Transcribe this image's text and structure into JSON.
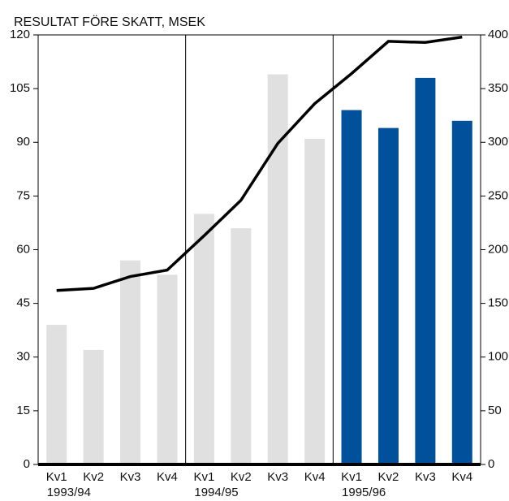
{
  "chart_data": {
    "type": "bar_line",
    "title": "RESULTAT FÖRE SKATT, MSEK",
    "categories": [
      "Kv1",
      "Kv2",
      "Kv3",
      "Kv4",
      "Kv1",
      "Kv2",
      "Kv3",
      "Kv4",
      "Kv1",
      "Kv2",
      "Kv3",
      "Kv4"
    ],
    "groups": [
      "1993/94",
      "1994/95",
      "1995/96"
    ],
    "bars": {
      "values": [
        39,
        32,
        57,
        53,
        70,
        66,
        109,
        91,
        99,
        94,
        108,
        96
      ],
      "colors": [
        "#e0e0e0",
        "#e0e0e0",
        "#e0e0e0",
        "#e0e0e0",
        "#e0e0e0",
        "#e0e0e0",
        "#e0e0e0",
        "#e0e0e0",
        "#00509b",
        "#00509b",
        "#00509b",
        "#00509b"
      ]
    },
    "line": {
      "values": [
        162,
        164,
        175,
        181,
        213,
        246,
        299,
        336,
        364,
        394,
        393,
        398
      ],
      "color": "#000000",
      "axis": "y2"
    },
    "ylim": [
      0,
      120
    ],
    "yticks": [
      0,
      15,
      30,
      45,
      60,
      75,
      90,
      105,
      120
    ],
    "y2lim": [
      0,
      400
    ],
    "y2ticks": [
      0,
      50,
      100,
      150,
      200,
      250,
      300,
      350,
      400
    ]
  }
}
